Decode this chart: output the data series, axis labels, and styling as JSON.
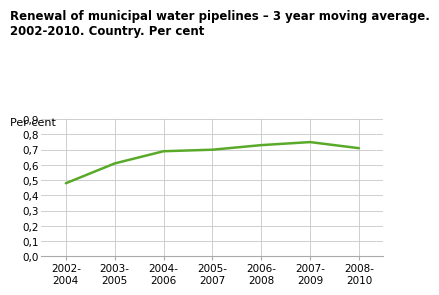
{
  "title_line1": "Renewal of municipal water pipelines – 3 year moving average.",
  "title_line2": "2002-2010. Country. Per cent",
  "ylabel": "Per cent",
  "x_labels": [
    "2002-\n2004",
    "2003-\n2005",
    "2004-\n2006",
    "2005-\n2007",
    "2006-\n2008",
    "2007-\n2009",
    "2008-\n2010"
  ],
  "x_values": [
    0,
    1,
    2,
    3,
    4,
    5,
    6
  ],
  "y_values": [
    0.48,
    0.61,
    0.69,
    0.7,
    0.73,
    0.75,
    0.71
  ],
  "line_color": "#5aaa2a",
  "ylim_min": 0.0,
  "ylim_max": 0.9,
  "yticks": [
    0.0,
    0.1,
    0.2,
    0.3,
    0.4,
    0.5,
    0.6,
    0.7,
    0.8,
    0.9
  ],
  "ytick_labels": [
    "0,0",
    "0,1",
    "0,2",
    "0,3",
    "0,4",
    "0,5",
    "0,6",
    "0,7",
    "0,8",
    "0,9"
  ],
  "title_fontsize": 8.5,
  "ylabel_fontsize": 8,
  "tick_fontsize": 7.5,
  "background_color": "#ffffff",
  "grid_color": "#c8c8c8"
}
